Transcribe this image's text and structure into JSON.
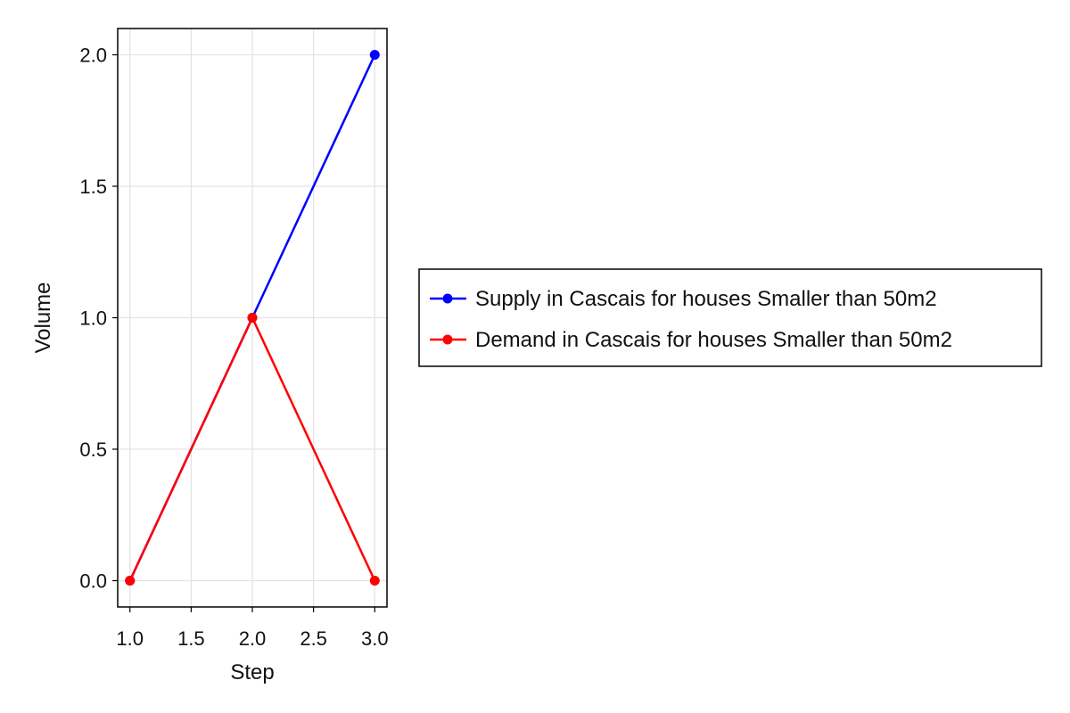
{
  "chart_data": {
    "type": "line",
    "xlabel": "Step",
    "ylabel": "Volume",
    "xlim": [
      0.9,
      3.1
    ],
    "ylim": [
      -0.1,
      2.1
    ],
    "x_ticks": [
      1.0,
      1.5,
      2.0,
      2.5,
      3.0
    ],
    "x_tick_labels": [
      "1.0",
      "1.5",
      "2.0",
      "2.5",
      "3.0"
    ],
    "y_ticks": [
      0.0,
      0.5,
      1.0,
      1.5,
      2.0
    ],
    "y_tick_labels": [
      "0.0",
      "0.5",
      "1.0",
      "1.5",
      "2.0"
    ],
    "grid": true,
    "legend_position": "right",
    "x": [
      1,
      2,
      3
    ],
    "series": [
      {
        "name": "Supply in Cascais for houses Smaller than 50m2",
        "color": "#0000ff",
        "values": [
          0,
          1,
          2
        ]
      },
      {
        "name": "Demand in Cascais for houses Smaller than 50m2",
        "color": "#ff0000",
        "values": [
          0,
          1,
          0
        ]
      }
    ]
  }
}
